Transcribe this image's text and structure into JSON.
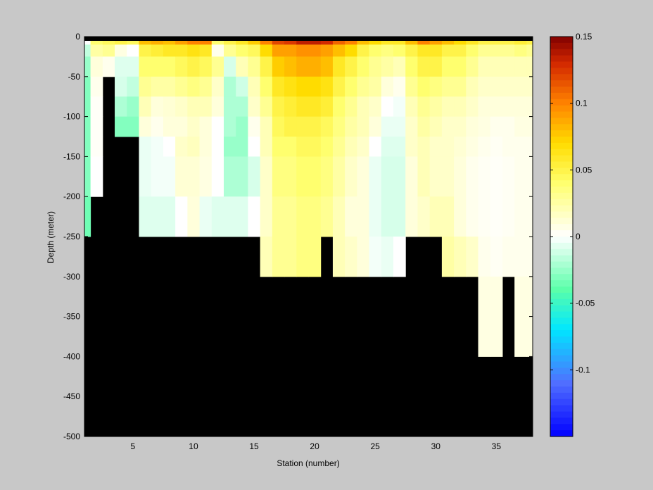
{
  "chart_data": {
    "type": "heatmap",
    "title": "",
    "xlabel": "Station (number)",
    "ylabel": "Depth (meter)",
    "xlim": [
      1,
      38
    ],
    "ylim": [
      -500,
      0
    ],
    "x_ticks": [
      5,
      10,
      15,
      20,
      25,
      30,
      35
    ],
    "y_ticks": [
      0,
      -50,
      -100,
      -150,
      -200,
      -250,
      -300,
      -350,
      -400,
      -450,
      -500
    ],
    "colorbar": {
      "colormap": "jet-like diverging (blue - cyan - green - white - yellow - orange - dark red)",
      "range": [
        -0.15,
        0.15
      ],
      "ticks": [
        0.15,
        0.1,
        0.05,
        0,
        -0.05,
        -0.1
      ],
      "tick_labels": [
        "0.15",
        "0.1",
        "0.05",
        "0",
        "-0.05",
        "-0.1"
      ]
    },
    "land_color": "#000000",
    "depth_levels": [
      0,
      -10,
      -25,
      -50,
      -75,
      -100,
      -125,
      -150,
      -200,
      -250,
      -300,
      -400,
      -500
    ],
    "stations": [
      1,
      2,
      3,
      4,
      5,
      6,
      7,
      8,
      9,
      10,
      11,
      12,
      13,
      14,
      15,
      16,
      17,
      18,
      19,
      20,
      21,
      22,
      23,
      24,
      25,
      26,
      27,
      28,
      29,
      30,
      31,
      32,
      33,
      34,
      35,
      36,
      37,
      38
    ],
    "bottom_depth": [
      -250,
      -200,
      -75,
      -150,
      -150,
      -250,
      -250,
      -250,
      -250,
      -250,
      -250,
      -250,
      -250,
      -250,
      -250,
      -300,
      -300,
      -300,
      -300,
      -300,
      -250,
      -300,
      -300,
      -300,
      -300,
      -300,
      -300,
      -250,
      -250,
      -250,
      -300,
      -300,
      -300,
      -400,
      -400,
      -300,
      -400,
      -400
    ],
    "values": [
      [
        0.0,
        -0.015,
        -0.025,
        -0.03,
        -0.03,
        -0.03,
        -0.03,
        -0.03,
        -0.035,
        -0.035,
        null,
        null
      ],
      [
        0.04,
        0.025,
        0.01,
        0.005,
        0.002,
        0.002,
        0.002,
        0.0,
        0.0,
        null,
        null,
        null
      ],
      [
        0.045,
        0.03,
        0.005,
        null,
        null,
        null,
        null,
        null,
        null,
        null,
        null,
        null
      ],
      [
        0.05,
        0.008,
        -0.008,
        -0.01,
        -0.02,
        -0.03,
        null,
        null,
        null,
        null,
        null,
        null
      ],
      [
        0.045,
        0.0,
        -0.008,
        -0.015,
        -0.025,
        -0.03,
        null,
        null,
        null,
        null,
        null,
        null
      ],
      [
        0.08,
        0.05,
        0.04,
        0.03,
        0.02,
        0.01,
        -0.005,
        -0.005,
        -0.008,
        null,
        null,
        null
      ],
      [
        0.085,
        0.055,
        0.04,
        0.025,
        0.01,
        0.005,
        -0.003,
        -0.003,
        -0.008,
        null,
        null,
        null
      ],
      [
        0.08,
        0.06,
        0.04,
        0.025,
        0.012,
        0.01,
        0.0,
        -0.003,
        -0.008,
        null,
        null,
        null
      ],
      [
        0.09,
        0.06,
        0.045,
        0.03,
        0.015,
        0.01,
        0.015,
        0.012,
        0.0,
        null,
        null,
        null
      ],
      [
        0.1,
        0.065,
        0.05,
        0.035,
        0.02,
        0.015,
        0.018,
        0.012,
        0.01,
        null,
        null,
        null
      ],
      [
        0.1,
        0.06,
        0.045,
        0.03,
        0.02,
        0.01,
        0.01,
        0.008,
        -0.005,
        null,
        null,
        null
      ],
      [
        0.04,
        0.005,
        0.03,
        0.015,
        0.01,
        0.0,
        0.0,
        0.0,
        -0.008,
        null,
        null,
        null
      ],
      [
        0.05,
        0.03,
        -0.01,
        -0.02,
        -0.02,
        -0.02,
        -0.025,
        -0.02,
        -0.008,
        null,
        null,
        null
      ],
      [
        0.06,
        0.04,
        0.02,
        -0.012,
        -0.02,
        -0.025,
        -0.025,
        -0.02,
        -0.008,
        null,
        null,
        null
      ],
      [
        0.075,
        0.045,
        0.03,
        0.02,
        0.015,
        0.005,
        0.0,
        -0.01,
        0.0,
        null,
        null,
        null
      ],
      [
        0.1,
        0.07,
        0.05,
        0.04,
        0.03,
        0.02,
        0.02,
        0.015,
        0.015,
        0.02,
        null,
        null
      ],
      [
        0.12,
        0.09,
        0.075,
        0.06,
        0.05,
        0.045,
        0.04,
        0.035,
        0.03,
        0.03,
        null,
        null
      ],
      [
        0.125,
        0.09,
        0.08,
        0.065,
        0.055,
        0.05,
        0.04,
        0.035,
        0.03,
        0.03,
        null,
        null
      ],
      [
        0.135,
        0.095,
        0.085,
        0.07,
        0.06,
        0.05,
        0.045,
        0.04,
        0.035,
        0.035,
        null,
        null
      ],
      [
        0.135,
        0.095,
        0.085,
        0.07,
        0.06,
        0.05,
        0.045,
        0.04,
        0.035,
        0.035,
        null,
        null
      ],
      [
        0.13,
        0.09,
        0.08,
        0.065,
        0.055,
        0.045,
        0.04,
        0.035,
        0.03,
        null,
        null,
        null
      ],
      [
        0.11,
        0.08,
        0.06,
        0.05,
        0.04,
        0.035,
        0.03,
        0.025,
        0.02,
        0.02,
        null,
        null
      ],
      [
        0.1,
        0.07,
        0.05,
        0.04,
        0.03,
        0.025,
        0.02,
        0.015,
        0.01,
        0.015,
        null,
        null
      ],
      [
        0.08,
        0.05,
        0.04,
        0.03,
        0.02,
        0.02,
        0.015,
        0.01,
        0.01,
        0.01,
        null,
        null
      ],
      [
        0.07,
        0.04,
        0.03,
        0.025,
        0.015,
        0.01,
        0.0,
        -0.005,
        -0.005,
        -0.003,
        null,
        null
      ],
      [
        0.06,
        0.035,
        0.025,
        0.01,
        0.0,
        -0.005,
        -0.008,
        -0.01,
        -0.01,
        -0.005,
        null,
        null
      ],
      [
        0.06,
        0.04,
        0.02,
        0.005,
        -0.003,
        -0.005,
        -0.008,
        -0.01,
        -0.01,
        0.0,
        null,
        null
      ],
      [
        0.08,
        0.05,
        0.04,
        0.03,
        0.02,
        0.015,
        0.015,
        0.01,
        0.01,
        null,
        null,
        null
      ],
      [
        0.1,
        0.06,
        0.05,
        0.04,
        0.03,
        0.025,
        0.02,
        0.02,
        0.015,
        null,
        null,
        null
      ],
      [
        0.09,
        0.06,
        0.05,
        0.035,
        0.025,
        0.02,
        0.015,
        0.015,
        0.02,
        null,
        null,
        null
      ],
      [
        0.08,
        0.05,
        0.04,
        0.03,
        0.02,
        0.015,
        0.015,
        0.015,
        0.02,
        0.025,
        null,
        null
      ],
      [
        0.07,
        0.05,
        0.04,
        0.03,
        0.02,
        0.015,
        0.012,
        0.01,
        0.01,
        0.02,
        null,
        null
      ],
      [
        0.06,
        0.04,
        0.03,
        0.02,
        0.015,
        0.01,
        0.008,
        0.005,
        0.005,
        0.015,
        null,
        null
      ],
      [
        0.05,
        0.03,
        0.02,
        0.015,
        0.01,
        0.008,
        0.005,
        0.003,
        0.003,
        0.005,
        0.008,
        null
      ],
      [
        0.05,
        0.03,
        0.02,
        0.015,
        0.01,
        0.005,
        0.003,
        0.002,
        0.002,
        0.003,
        0.008,
        null
      ],
      [
        0.05,
        0.03,
        0.02,
        0.015,
        0.01,
        0.005,
        0.005,
        0.003,
        0.003,
        0.005,
        null,
        null
      ],
      [
        0.055,
        0.035,
        0.02,
        0.015,
        0.01,
        0.008,
        0.005,
        0.005,
        0.005,
        0.005,
        0.008,
        null
      ],
      [
        0.05,
        0.03,
        0.02,
        0.015,
        0.01,
        0.008,
        0.005,
        0.005,
        0.005,
        0.005,
        0.008,
        null
      ]
    ]
  }
}
